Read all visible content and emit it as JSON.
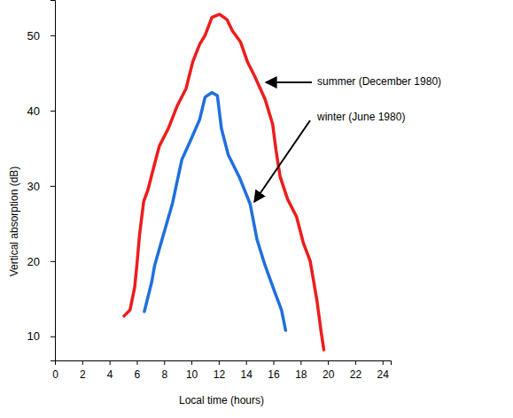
{
  "chart_data": {
    "type": "line",
    "x_label": "Local time (hours)",
    "y_label": "Vertical absorption (dB)",
    "xlim": [
      0,
      24.6
    ],
    "ylim": [
      6.8,
      54.7
    ],
    "xticks": [
      0,
      2,
      4,
      6,
      8,
      10,
      12,
      14,
      16,
      18,
      20,
      22,
      24
    ],
    "yticks": [
      10,
      20,
      30,
      40,
      50
    ],
    "grid": false,
    "series": [
      {
        "name": "summer (December 1980)",
        "color": "#ee1c1c",
        "x": [
          5.06,
          5.5,
          5.84,
          6.0,
          6.2,
          6.5,
          6.8,
          7.3,
          7.65,
          8.3,
          8.95,
          9.6,
          10.1,
          10.6,
          11.0,
          11.5,
          12.06,
          12.6,
          13.0,
          13.6,
          14.1,
          14.6,
          15.4,
          15.95,
          16.2,
          16.5,
          17.05,
          17.7,
          18.2,
          18.7,
          19.2,
          19.5,
          19.7
        ],
        "values": [
          12.7,
          13.5,
          16.5,
          19.4,
          23.5,
          27.9,
          29.4,
          32.9,
          35.3,
          37.6,
          40.6,
          42.9,
          46.5,
          48.8,
          50.0,
          52.4,
          52.8,
          52.1,
          50.6,
          49.1,
          46.5,
          44.7,
          41.5,
          38.2,
          34.7,
          31.2,
          28.2,
          25.9,
          22.4,
          20.0,
          14.7,
          10.6,
          8.2
        ]
      },
      {
        "name": "winter (June 1980)",
        "color": "#1f6fdf",
        "x": [
          6.55,
          7.1,
          7.3,
          7.85,
          8.6,
          9.3,
          9.9,
          10.6,
          11.0,
          11.5,
          11.9,
          12.2,
          12.7,
          13.5,
          14.3,
          14.8,
          15.4,
          16.1,
          16.6,
          16.9
        ],
        "values": [
          13.3,
          17.3,
          19.4,
          22.9,
          27.6,
          33.5,
          35.9,
          38.8,
          41.8,
          42.4,
          42.0,
          37.6,
          34.1,
          31.2,
          27.6,
          22.9,
          19.4,
          15.9,
          13.5,
          10.8
        ]
      }
    ]
  }
}
